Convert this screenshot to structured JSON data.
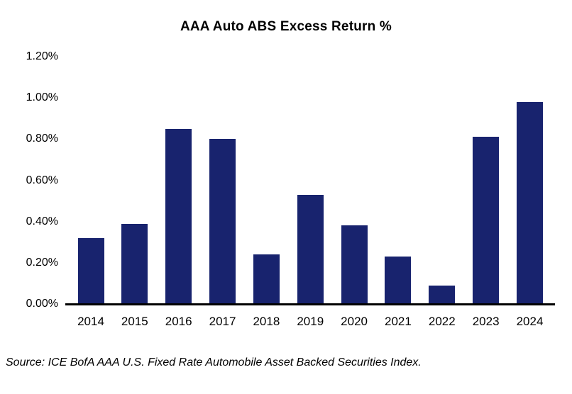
{
  "title": "AAA Auto ABS Excess Return %",
  "source_note": "Source: ICE BofA AAA U.S. Fixed Rate Automobile Asset Backed Securities Index.",
  "colors": {
    "bar": "#18236E",
    "axis": "#000000",
    "background": "#FFFFFF",
    "text": "#000000"
  },
  "chart_data": {
    "type": "bar",
    "title": "AAA Auto ABS Excess Return %",
    "categories": [
      "2014",
      "2015",
      "2016",
      "2017",
      "2018",
      "2019",
      "2020",
      "2021",
      "2022",
      "2023",
      "2024"
    ],
    "values": [
      0.32,
      0.39,
      0.85,
      0.8,
      0.24,
      0.53,
      0.38,
      0.23,
      0.09,
      0.81,
      0.98
    ],
    "unit": "%",
    "xlabel": "",
    "ylabel": "",
    "ylim": [
      0,
      1.2
    ],
    "ytick_step": 0.2,
    "ytick_labels": [
      "0.00%",
      "0.20%",
      "0.40%",
      "0.60%",
      "0.80%",
      "1.00%",
      "1.20%"
    ],
    "grid": false,
    "legend_position": "none"
  }
}
